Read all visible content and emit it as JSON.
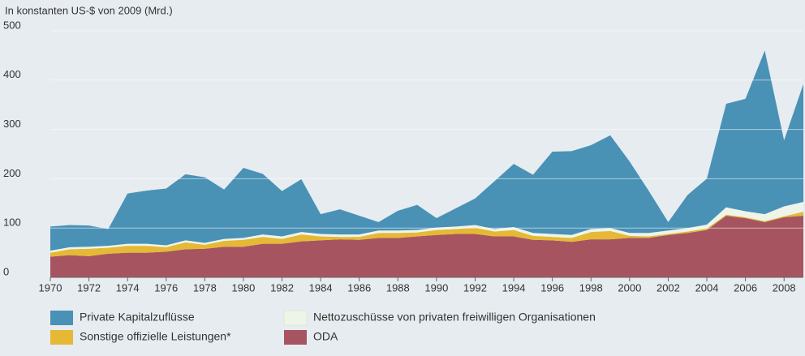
{
  "chart_data": {
    "type": "stacked_area",
    "y_label": "In konstanten US-$ von 2009 (Mrd.)",
    "x": [
      1970,
      1971,
      1972,
      1973,
      1974,
      1975,
      1976,
      1977,
      1978,
      1979,
      1980,
      1981,
      1982,
      1983,
      1984,
      1985,
      1986,
      1987,
      1988,
      1989,
      1990,
      1991,
      1992,
      1993,
      1994,
      1995,
      1996,
      1997,
      1998,
      1999,
      2000,
      2001,
      2002,
      2003,
      2004,
      2005,
      2006,
      2007,
      2008,
      2009
    ],
    "series": [
      {
        "name": "ODA",
        "color": "#a65560",
        "values": [
          42,
          45,
          43,
          48,
          50,
          50,
          52,
          57,
          58,
          62,
          62,
          68,
          68,
          73,
          75,
          77,
          76,
          80,
          80,
          83,
          86,
          88,
          88,
          83,
          83,
          76,
          75,
          72,
          77,
          77,
          80,
          80,
          86,
          90,
          96,
          125,
          120,
          112,
          122,
          125
        ]
      },
      {
        "name": "Sonstige offizielle Leistungen*",
        "color": "#e5b935",
        "values": [
          8,
          12,
          15,
          12,
          14,
          14,
          9,
          14,
          8,
          12,
          14,
          14,
          10,
          14,
          8,
          5,
          6,
          10,
          10,
          8,
          10,
          10,
          13,
          10,
          13,
          8,
          7,
          8,
          15,
          17,
          4,
          3,
          2,
          3,
          3,
          2,
          2,
          2,
          2,
          8
        ]
      },
      {
        "name": "Nettozuschüsse von privaten freiwilligen Organisationen",
        "color": "#eef5e8",
        "values": [
          4,
          4,
          4,
          4,
          4,
          4,
          4,
          4,
          4,
          4,
          4,
          5,
          5,
          5,
          5,
          5,
          5,
          5,
          5,
          5,
          5,
          5,
          5,
          5,
          6,
          6,
          6,
          6,
          6,
          6,
          6,
          7,
          7,
          7,
          8,
          15,
          12,
          14,
          20,
          20
        ]
      },
      {
        "name": "Private Kapitalzuflüsse",
        "color": "#4a91b6",
        "values": [
          49,
          45,
          43,
          34,
          102,
          108,
          115,
          134,
          133,
          100,
          142,
          123,
          92,
          107,
          40,
          51,
          38,
          17,
          40,
          51,
          19,
          37,
          54,
          97,
          128,
          118,
          167,
          170,
          170,
          188,
          145,
          85,
          17,
          67,
          93,
          210,
          228,
          332,
          134,
          239
        ]
      }
    ],
    "xlim": [
      1970,
      2009
    ],
    "xticks": [
      1970,
      1972,
      1974,
      1976,
      1978,
      1980,
      1982,
      1984,
      1986,
      1988,
      1990,
      1992,
      1994,
      1996,
      1998,
      2000,
      2002,
      2004,
      2006,
      2008
    ],
    "ylim": [
      0,
      500
    ],
    "yticks": [
      0,
      100,
      200,
      300,
      400,
      500
    ],
    "grid": true
  }
}
